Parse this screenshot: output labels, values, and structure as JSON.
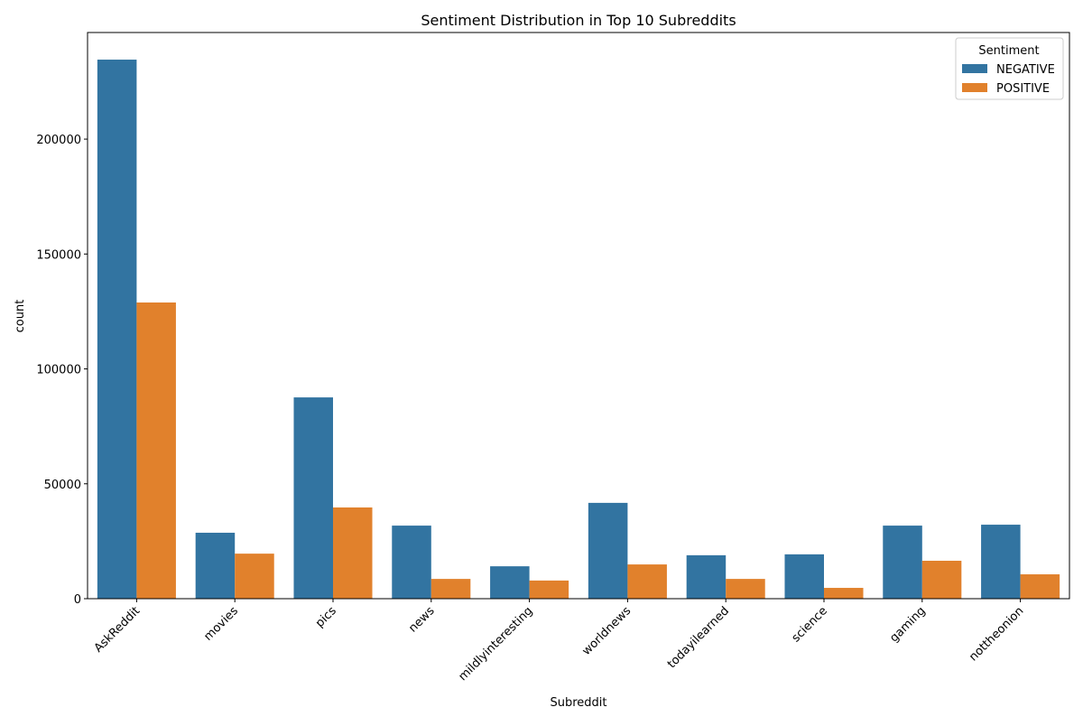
{
  "chart_data": {
    "type": "bar",
    "title": "Sentiment Distribution in Top 10 Subreddits",
    "xlabel": "Subreddit",
    "ylabel": "count",
    "ylim": [
      0,
      246400
    ],
    "yticks": [
      0,
      50000,
      100000,
      150000,
      200000
    ],
    "grid": false,
    "legend": {
      "title": "Sentiment",
      "placement": "top-right"
    },
    "categories": [
      "AskReddit",
      "movies",
      "pics",
      "news",
      "mildlyinteresting",
      "worldnews",
      "todayilearned",
      "science",
      "gaming",
      "nottheonion"
    ],
    "series": [
      {
        "name": "NEGATIVE",
        "color": "#3274a1",
        "values": [
          234600,
          28700,
          87600,
          31800,
          14100,
          41700,
          18900,
          19300,
          31800,
          32200
        ]
      },
      {
        "name": "POSITIVE",
        "color": "#e1812c",
        "values": [
          128900,
          19600,
          39700,
          8600,
          7900,
          14900,
          8600,
          4700,
          16500,
          10600
        ]
      }
    ]
  }
}
